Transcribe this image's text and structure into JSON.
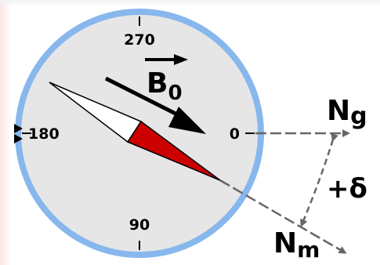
{
  "colors": {
    "background": "#ffffff",
    "edge_tint": "#fbe6e6",
    "compass_face": "#e6e6e6",
    "compass_rim": "#87b7ec",
    "needle_north": "#cc0000",
    "needle_south": "#ffffff",
    "ink": "#000000",
    "reference_lines": "#666666"
  },
  "dial": {
    "labels": {
      "top": "270",
      "left": "180",
      "right": "0",
      "bottom": "90"
    }
  },
  "field": {
    "label": "B",
    "subscript": "0"
  },
  "geographic_north": {
    "letter": "N",
    "subscript": "g"
  },
  "magnetic_north": {
    "letter": "N",
    "subscript": "m"
  },
  "declination": {
    "label": "+δ"
  },
  "icons": {
    "field_arrow": "arrow-icon",
    "left_marker": "triangle-marker-icon"
  }
}
